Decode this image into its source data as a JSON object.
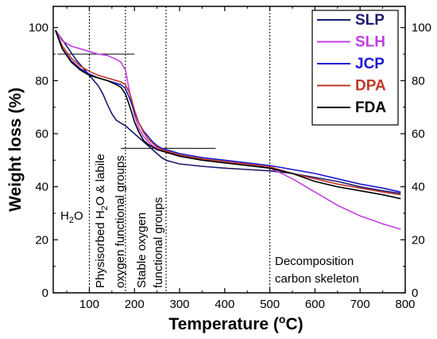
{
  "chart_data": {
    "type": "line",
    "xlabel": "Temperature (",
    "xlabel_sup": "o",
    "xlabel_end": "C)",
    "ylabel": "Weight loss (%)",
    "xlim": [
      20,
      800
    ],
    "ylim": [
      0,
      108
    ],
    "x_ticks": [
      "100",
      "200",
      "300",
      "400",
      "500",
      "600",
      "700",
      "800"
    ],
    "y_ticks": [
      "0",
      "20",
      "40",
      "60",
      "80",
      "100"
    ],
    "y_ticks_right": [
      "0",
      "20",
      "40",
      "60",
      "80",
      "100"
    ],
    "legend_position": "top-right",
    "series": [
      {
        "name": "SLP",
        "color": "#1a1a6e",
        "x": [
          25,
          50,
          70,
          90,
          110,
          120,
          130,
          140,
          150,
          160,
          170,
          180,
          190,
          200,
          210,
          220,
          230,
          240,
          250,
          260,
          270,
          280,
          300,
          350,
          400,
          450,
          500,
          550,
          600,
          650,
          700,
          750,
          790
        ],
        "y": [
          99,
          93,
          88,
          84,
          80,
          78,
          75,
          71,
          67.5,
          65,
          64,
          63,
          61.5,
          60,
          58.5,
          57,
          55.5,
          54,
          52.5,
          51,
          50,
          49.5,
          48.6,
          47.7,
          47,
          46.5,
          46,
          45,
          43.5,
          42,
          40,
          38.5,
          37.5
        ]
      },
      {
        "name": "SLH",
        "color": "#c040e0",
        "x": [
          25,
          40,
          60,
          80,
          100,
          120,
          140,
          160,
          170,
          180,
          190,
          200,
          210,
          220,
          230,
          240,
          250,
          260,
          270,
          280,
          300,
          350,
          400,
          450,
          500,
          520,
          550,
          600,
          650,
          700,
          750,
          790
        ],
        "y": [
          99,
          95,
          93,
          92,
          91,
          90,
          89.5,
          88,
          87,
          84,
          75,
          67,
          62,
          59,
          57,
          55.5,
          54.5,
          53.8,
          53.3,
          52.8,
          52,
          50.5,
          49.5,
          48.5,
          47,
          45.5,
          43,
          38,
          33,
          29,
          26,
          24
        ]
      },
      {
        "name": "JCP",
        "color": "#1a1ad0",
        "x": [
          25,
          40,
          60,
          80,
          100,
          120,
          140,
          160,
          170,
          180,
          190,
          200,
          210,
          220,
          230,
          240,
          250,
          260,
          270,
          280,
          300,
          350,
          400,
          450,
          500,
          550,
          600,
          650,
          700,
          750,
          790
        ],
        "y": [
          99,
          92,
          87.5,
          84.5,
          82.5,
          81,
          80,
          79,
          78.5,
          77,
          73,
          68,
          64,
          61,
          59,
          57,
          55.5,
          54.5,
          54,
          53.5,
          52.5,
          51,
          50,
          49,
          48,
          46.5,
          45,
          43,
          41,
          39.5,
          38
        ]
      },
      {
        "name": "DPA",
        "color": "#c0392b",
        "x": [
          25,
          40,
          60,
          80,
          100,
          120,
          140,
          160,
          170,
          180,
          190,
          200,
          210,
          220,
          230,
          240,
          250,
          260,
          270,
          280,
          300,
          350,
          400,
          450,
          500,
          550,
          600,
          650,
          700,
          750,
          790
        ],
        "y": [
          99,
          93,
          88.5,
          85.5,
          83.5,
          82,
          81,
          80,
          79.5,
          78.5,
          75,
          69,
          64,
          60.5,
          58,
          56.5,
          55,
          54,
          53.5,
          53,
          52,
          50.5,
          49.5,
          48.5,
          47.5,
          45,
          43,
          41,
          39.5,
          38,
          37
        ]
      },
      {
        "name": "FDA",
        "color": "#000000",
        "x": [
          25,
          40,
          60,
          80,
          100,
          120,
          140,
          160,
          170,
          180,
          190,
          200,
          210,
          220,
          230,
          240,
          250,
          260,
          270,
          280,
          300,
          350,
          400,
          450,
          500,
          550,
          600,
          650,
          700,
          750,
          790
        ],
        "y": [
          99,
          92,
          87,
          84,
          82,
          81,
          80,
          78.5,
          77.5,
          75,
          70,
          64.5,
          60.5,
          57.5,
          56,
          55,
          54,
          53.5,
          53,
          52.5,
          51.5,
          50,
          49,
          48,
          47,
          45,
          42,
          40,
          38.5,
          37,
          35.5
        ]
      }
    ],
    "vlines": [
      100,
      180,
      270,
      500
    ],
    "hlines": [
      {
        "y": 90,
        "x1": 30,
        "x2": 200
      },
      {
        "y": 54.5,
        "x1": 170,
        "x2": 380
      }
    ],
    "annotations": {
      "h2o": {
        "main": "H",
        "sub": "2",
        "end": "O"
      },
      "physisorbed_line1_a": "Physisorbed H",
      "physisorbed_line1_sub": "2",
      "physisorbed_line1_b": "O & labile",
      "physisorbed_line2": "oxygen functional groups",
      "stable_line1": "Stable oxygen",
      "stable_line2": "functional groups",
      "decomp_line1": "Decomposition",
      "decomp_line2": "carbon skeleton"
    }
  }
}
